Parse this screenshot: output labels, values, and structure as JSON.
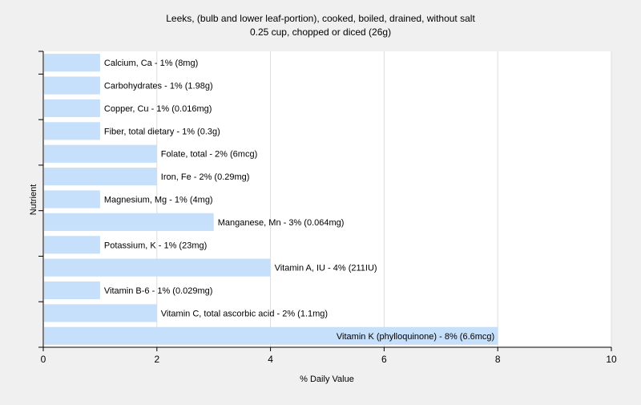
{
  "chart_data": {
    "type": "bar",
    "orientation": "horizontal",
    "title": "Leeks, (bulb and lower leaf-portion), cooked, boiled, drained, without salt",
    "subtitle": "0.25 cup, chopped or diced (26g)",
    "xlabel": "% Daily Value",
    "ylabel": "Nutrient",
    "xlim": [
      0,
      10
    ],
    "x_ticks": [
      "0",
      "2",
      "4",
      "6",
      "8",
      "10"
    ],
    "grid": "vertical",
    "categories": [
      "Calcium, Ca",
      "Carbohydrates",
      "Copper, Cu",
      "Fiber, total dietary",
      "Folate, total",
      "Iron, Fe",
      "Magnesium, Mg",
      "Manganese, Mn",
      "Potassium, K",
      "Vitamin A, IU",
      "Vitamin B-6",
      "Vitamin C, total ascorbic acid",
      "Vitamin K (phylloquinone)"
    ],
    "values": [
      1,
      1,
      1,
      1,
      2,
      2,
      1,
      3,
      1,
      4,
      1,
      2,
      8
    ],
    "labels": [
      "Calcium, Ca - 1% (8mg)",
      "Carbohydrates - 1% (1.98g)",
      "Copper, Cu - 1% (0.016mg)",
      "Fiber, total dietary - 1% (0.3g)",
      "Folate, total - 2% (6mcg)",
      "Iron, Fe - 2% (0.29mg)",
      "Magnesium, Mg - 1% (4mg)",
      "Manganese, Mn - 3% (0.064mg)",
      "Potassium, K - 1% (23mg)",
      "Vitamin A, IU - 4% (211IU)",
      "Vitamin B-6 - 1% (0.029mg)",
      "Vitamin C, total ascorbic acid - 2% (1.1mg)",
      "Vitamin K (phylloquinone) - 8% (6.6mcg)"
    ],
    "colors": {
      "background": "#f0f0f0",
      "plot_background": "#ffffff",
      "bar": "#c6dffb",
      "grid": "#dddddd",
      "axis": "#000000",
      "text": "#000000"
    }
  }
}
